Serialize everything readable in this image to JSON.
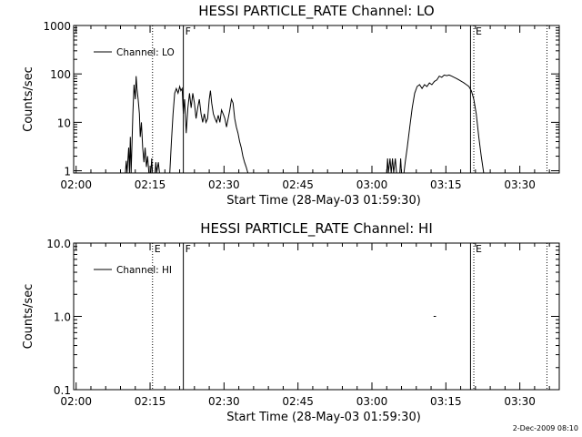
{
  "timestamp": "2-Dec-2009 08:10",
  "chart_data": [
    {
      "type": "line",
      "title": "HESSI PARTICLE_RATE Channel: LO",
      "xlabel": "Start Time (28-May-03 01:59:30)",
      "ylabel": "Counts/sec",
      "yscale": "log",
      "ylim": [
        0.9,
        1000
      ],
      "xlim": [
        "01:59:30",
        "03:38:00"
      ],
      "x_ticks": [
        "02:00",
        "02:15",
        "02:30",
        "02:45",
        "03:00",
        "03:15",
        "03:30"
      ],
      "y_ticks": [
        {
          "value": 1,
          "label": "1"
        },
        {
          "value": 10,
          "label": "10"
        },
        {
          "value": 100,
          "label": "100"
        },
        {
          "value": 1000,
          "label": "1000"
        }
      ],
      "legend": {
        "position": "top-left",
        "entries": [
          "Channel: LO"
        ]
      },
      "markers": [
        {
          "time": "02:21:45",
          "style": "solid",
          "label": "F"
        },
        {
          "time": "02:15:30",
          "style": "dotted",
          "label": ""
        },
        {
          "time": "03:20:00",
          "style": "solid",
          "label": ""
        },
        {
          "time": "03:20:40",
          "style": "dotted",
          "label": "E"
        },
        {
          "time": "03:35:30",
          "style": "dotted",
          "label": ""
        }
      ],
      "series": [
        {
          "name": "Channel: LO",
          "points": [
            [
              "02:10:00",
              0.9
            ],
            [
              "02:10:10",
              1.6
            ],
            [
              "02:10:20",
              0.9
            ],
            [
              "02:10:40",
              3.0
            ],
            [
              "02:10:50",
              0.9
            ],
            [
              "02:11:00",
              5.0
            ],
            [
              "02:11:10",
              0.9
            ],
            [
              "02:11:30",
              15
            ],
            [
              "02:11:45",
              60
            ],
            [
              "02:12:00",
              30
            ],
            [
              "02:12:10",
              90
            ],
            [
              "02:12:20",
              50
            ],
            [
              "02:12:35",
              30
            ],
            [
              "02:12:50",
              15
            ],
            [
              "02:13:00",
              5
            ],
            [
              "02:13:15",
              10
            ],
            [
              "02:13:30",
              3
            ],
            [
              "02:13:45",
              1.5
            ],
            [
              "02:14:00",
              3
            ],
            [
              "02:14:15",
              1.2
            ],
            [
              "02:14:30",
              2
            ],
            [
              "02:14:45",
              0.9
            ],
            [
              "02:15:10",
              0.9
            ],
            [
              "02:15:20",
              1.8
            ],
            [
              "02:15:30",
              0.9
            ],
            [
              "02:16:00",
              0.9
            ],
            [
              "02:16:10",
              1.5
            ],
            [
              "02:16:20",
              0.9
            ],
            [
              "02:16:40",
              1.5
            ],
            [
              "02:16:55",
              0.9
            ],
            [
              "02:19:00",
              0.9
            ],
            [
              "02:19:20",
              4
            ],
            [
              "02:19:40",
              15
            ],
            [
              "02:20:00",
              40
            ],
            [
              "02:20:20",
              50
            ],
            [
              "02:20:40",
              40
            ],
            [
              "02:21:00",
              55
            ],
            [
              "02:21:15",
              45
            ],
            [
              "02:21:30",
              50
            ],
            [
              "02:21:45",
              15
            ],
            [
              "02:22:00",
              30
            ],
            [
              "02:22:20",
              6
            ],
            [
              "02:22:40",
              20
            ],
            [
              "02:23:00",
              40
            ],
            [
              "02:23:20",
              20
            ],
            [
              "02:23:40",
              40
            ],
            [
              "02:24:00",
              25
            ],
            [
              "02:24:20",
              12
            ],
            [
              "02:24:40",
              20
            ],
            [
              "02:25:00",
              30
            ],
            [
              "02:25:20",
              15
            ],
            [
              "02:25:40",
              10
            ],
            [
              "02:26:00",
              15
            ],
            [
              "02:26:20",
              10
            ],
            [
              "02:26:40",
              12
            ],
            [
              "02:27:00",
              30
            ],
            [
              "02:27:15",
              45
            ],
            [
              "02:27:30",
              25
            ],
            [
              "02:27:50",
              15
            ],
            [
              "02:28:10",
              12
            ],
            [
              "02:28:30",
              10
            ],
            [
              "02:28:50",
              14
            ],
            [
              "02:29:10",
              10
            ],
            [
              "02:29:30",
              18
            ],
            [
              "02:29:50",
              15
            ],
            [
              "02:30:10",
              12
            ],
            [
              "02:30:30",
              8
            ],
            [
              "02:30:50",
              12
            ],
            [
              "02:31:10",
              18
            ],
            [
              "02:31:30",
              30
            ],
            [
              "02:31:50",
              25
            ],
            [
              "02:32:10",
              12
            ],
            [
              "02:32:30",
              8
            ],
            [
              "02:32:50",
              6
            ],
            [
              "02:33:10",
              4
            ],
            [
              "02:33:30",
              3
            ],
            [
              "02:33:50",
              2
            ],
            [
              "02:34:10",
              1.5
            ],
            [
              "02:34:30",
              1.2
            ],
            [
              "02:34:50",
              0.9
            ],
            [
              "03:03:00",
              0.9
            ],
            [
              "03:03:10",
              1.8
            ],
            [
              "03:03:20",
              0.9
            ],
            [
              "03:03:40",
              1.8
            ],
            [
              "03:03:55",
              0.9
            ],
            [
              "03:04:10",
              1.8
            ],
            [
              "03:04:25",
              0.9
            ],
            [
              "03:04:45",
              1.8
            ],
            [
              "03:05:00",
              0.9
            ],
            [
              "03:05:40",
              0.9
            ],
            [
              "03:05:50",
              1.8
            ],
            [
              "03:06:00",
              0.9
            ],
            [
              "03:06:30",
              0.9
            ],
            [
              "03:06:45",
              1.5
            ],
            [
              "03:07:10",
              3
            ],
            [
              "03:07:40",
              8
            ],
            [
              "03:08:10",
              20
            ],
            [
              "03:08:40",
              40
            ],
            [
              "03:09:10",
              55
            ],
            [
              "03:09:40",
              60
            ],
            [
              "03:10:10",
              50
            ],
            [
              "03:10:40",
              60
            ],
            [
              "03:11:10",
              55
            ],
            [
              "03:11:40",
              65
            ],
            [
              "03:12:10",
              60
            ],
            [
              "03:12:40",
              70
            ],
            [
              "03:13:10",
              75
            ],
            [
              "03:13:40",
              90
            ],
            [
              "03:14:10",
              85
            ],
            [
              "03:14:40",
              95
            ],
            [
              "03:15:10",
              92
            ],
            [
              "03:15:40",
              95
            ],
            [
              "03:16:10",
              90
            ],
            [
              "03:16:40",
              85
            ],
            [
              "03:17:10",
              80
            ],
            [
              "03:17:40",
              75
            ],
            [
              "03:18:10",
              70
            ],
            [
              "03:18:40",
              65
            ],
            [
              "03:19:10",
              60
            ],
            [
              "03:19:40",
              55
            ],
            [
              "03:20:10",
              45
            ],
            [
              "03:20:40",
              30
            ],
            [
              "03:21:10",
              15
            ],
            [
              "03:21:40",
              5
            ],
            [
              "03:22:10",
              2
            ],
            [
              "03:22:40",
              0.9
            ]
          ]
        }
      ]
    },
    {
      "type": "line",
      "title": "HESSI PARTICLE_RATE Channel: HI",
      "xlabel": "Start Time (28-May-03 01:59:30)",
      "ylabel": "Counts/sec",
      "yscale": "log",
      "ylim": [
        0.1,
        10
      ],
      "xlim": [
        "01:59:30",
        "03:38:00"
      ],
      "x_ticks": [
        "02:00",
        "02:15",
        "02:30",
        "02:45",
        "03:00",
        "03:15",
        "03:30"
      ],
      "y_ticks": [
        {
          "value": 0.1,
          "label": "0.1"
        },
        {
          "value": 1,
          "label": "1.0"
        },
        {
          "value": 10,
          "label": "10.0"
        }
      ],
      "legend": {
        "position": "top-left",
        "entries": [
          "Channel: HI"
        ]
      },
      "markers": [
        {
          "time": "02:15:30",
          "style": "dotted",
          "label": "E"
        },
        {
          "time": "02:21:45",
          "style": "solid",
          "label": "F"
        },
        {
          "time": "03:20:00",
          "style": "solid",
          "label": ""
        },
        {
          "time": "03:20:40",
          "style": "dotted",
          "label": "E"
        },
        {
          "time": "03:35:30",
          "style": "dotted",
          "label": ""
        }
      ],
      "series": [
        {
          "name": "Channel: HI",
          "points": [
            [
              "03:12:30",
              1.0
            ],
            [
              "03:13:00",
              1.0
            ]
          ]
        }
      ]
    }
  ]
}
